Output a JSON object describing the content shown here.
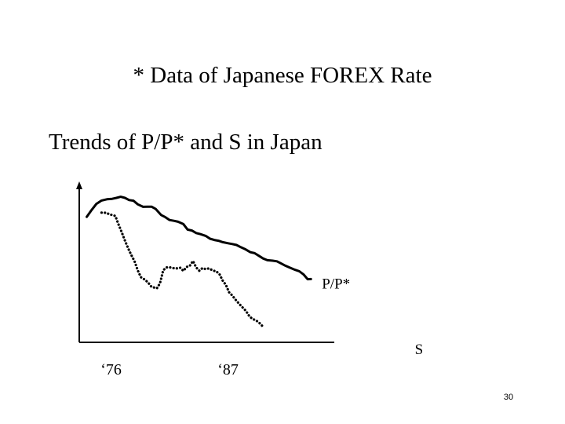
{
  "slide": {
    "title": "* Data of Japanese FOREX Rate",
    "page_number": "30"
  },
  "chart_data": {
    "type": "line",
    "title": "Trends of P/P* and S in Japan",
    "xlabel": "",
    "ylabel": "",
    "x_tick_labels": [
      {
        "label": "‘76",
        "x": 1976
      },
      {
        "label": "‘87",
        "x": 1987
      }
    ],
    "xlim": [
      1973,
      1997
    ],
    "ylim": [
      0,
      100
    ],
    "grid": false,
    "series": [
      {
        "name": "P/P*",
        "style": "solid",
        "x": [
          1973.7,
          1974.1,
          1974.6,
          1975.1,
          1975.6,
          1976.1,
          1976.5,
          1976.9,
          1977.3,
          1977.7,
          1978.1,
          1978.5,
          1979.0,
          1979.4,
          1979.8,
          1980.2,
          1980.7,
          1981.1,
          1981.5,
          1981.9,
          1982.3,
          1982.8,
          1983.2,
          1983.6,
          1984.0,
          1984.4,
          1984.9,
          1985.3,
          1985.7,
          1986.1,
          1986.5,
          1987.0,
          1987.4,
          1987.8,
          1988.2,
          1988.6,
          1989.1,
          1989.5,
          1989.9,
          1990.3,
          1990.7,
          1991.2,
          1991.6,
          1992.0,
          1992.4,
          1992.8,
          1993.3,
          1993.7,
          1994.1,
          1994.5,
          1994.8
        ],
        "values": [
          79.9,
          83.7,
          88.1,
          90.3,
          91.1,
          91.4,
          92.0,
          92.7,
          92.0,
          90.6,
          90.2,
          87.9,
          86.3,
          86.4,
          86.4,
          84.9,
          81.1,
          79.7,
          77.9,
          77.4,
          76.8,
          75.3,
          71.8,
          71.2,
          69.6,
          68.9,
          67.8,
          66.0,
          65.2,
          64.7,
          63.8,
          63.1,
          62.6,
          62.0,
          60.6,
          59.4,
          57.4,
          56.8,
          55.1,
          53.4,
          52.3,
          52.0,
          51.6,
          50.2,
          48.8,
          47.6,
          46.2,
          45.3,
          43.3,
          40.2,
          40.3
        ]
      },
      {
        "name": "S",
        "style": "dotted",
        "x": [
          1975.1,
          1975.5,
          1975.9,
          1976.4,
          1976.7,
          1977.0,
          1977.3,
          1977.6,
          1977.9,
          1978.2,
          1978.5,
          1978.8,
          1979.2,
          1979.5,
          1979.8,
          1980.1,
          1980.3,
          1980.6,
          1980.9,
          1981.2,
          1981.5,
          1981.8,
          1982.2,
          1982.5,
          1982.8,
          1983.1,
          1983.4,
          1983.7,
          1984.0,
          1984.3,
          1984.6,
          1984.9,
          1985.2,
          1985.6,
          1985.9,
          1986.2,
          1986.5,
          1986.8,
          1987.1,
          1987.4,
          1987.7,
          1988.0,
          1988.3,
          1988.7,
          1989.0,
          1989.3,
          1989.6,
          1989.9,
          1990.2
        ],
        "values": [
          82.6,
          82.5,
          81.4,
          80.5,
          75.0,
          70.0,
          64.8,
          59.9,
          55.5,
          51.7,
          45.9,
          41.5,
          39.8,
          37.9,
          35.3,
          34.8,
          34.4,
          37.6,
          45.9,
          47.7,
          47.8,
          47.3,
          47.1,
          47.5,
          45.5,
          48.0,
          48.7,
          51.8,
          47.7,
          45.6,
          47.3,
          46.6,
          47.1,
          45.7,
          45.2,
          43.3,
          39.3,
          36.5,
          31.9,
          29.8,
          27.2,
          24.9,
          22.7,
          19.9,
          16.7,
          14.9,
          14.1,
          12.7,
          10.6
        ]
      }
    ]
  }
}
